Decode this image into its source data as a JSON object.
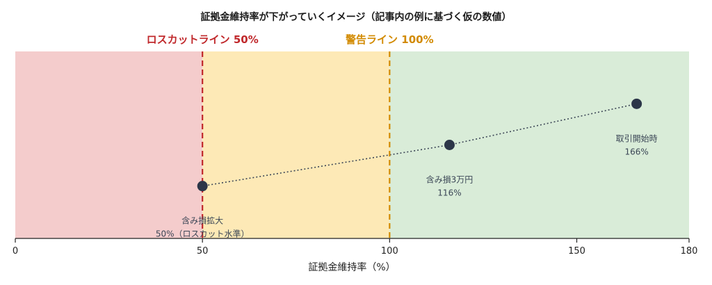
{
  "chart_data": {
    "type": "scatter",
    "title": "証拠金維持率が下がっていくイメージ（記事内の例に基づく仮の数値）",
    "xlabel": "証拠金維持率（%）",
    "xlim": [
      0,
      180
    ],
    "x_ticks": [
      "0",
      "50",
      "100",
      "150",
      "180"
    ],
    "x_tick_values": [
      0,
      50,
      100,
      150,
      180
    ],
    "zones": [
      {
        "from": 0,
        "to": 50,
        "color": "#f4cccc"
      },
      {
        "from": 50,
        "to": 100,
        "color": "#fde9b6"
      },
      {
        "from": 100,
        "to": 180,
        "color": "#d9ecd8"
      }
    ],
    "reference_lines": [
      {
        "x": 50,
        "label": "ロスカットライン 50%",
        "color": "#c0282b"
      },
      {
        "x": 100,
        "label": "警告ライン 100%",
        "color": "#d28a00"
      }
    ],
    "points": [
      {
        "x": 166,
        "level": 0.72,
        "label_line1": "取引開始時",
        "label_line2": "166%"
      },
      {
        "x": 116,
        "level": 0.5,
        "label_line1": "含み損3万円",
        "label_line2": "116%"
      },
      {
        "x": 50,
        "level": 0.28,
        "label_line1": "含み損拡大",
        "label_line2": "50%（ロスカット水準）"
      }
    ],
    "point_color": "#2c3648",
    "connector": "dotted",
    "grid": false,
    "legend": "none"
  }
}
